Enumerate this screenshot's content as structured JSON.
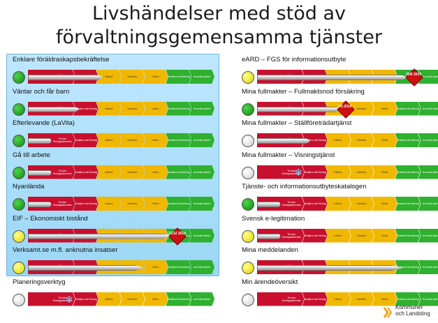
{
  "title": {
    "line1": "Livshändelser med stöd av",
    "line2": "förvaltningsgemensamma tjänster"
  },
  "stage_labels": [
    "",
    "Ta fram förslagsalternativ",
    "Detaljera valt förslag",
    "Initiera",
    "Utveckla",
    "Införa",
    "Realisera förvaltning",
    "Avveckla tjänst"
  ],
  "left_rows": [
    {
      "label": "Enklare föräldraskapsbekräftelse",
      "status": "green",
      "progress": 0.4,
      "marker": null
    },
    {
      "label": "Väntar och får barn",
      "status": "green",
      "progress": 0.27,
      "marker": null
    },
    {
      "label": "Efterlevande (LaVita)",
      "status": "green",
      "progress": 0.12,
      "marker": null
    },
    {
      "label": "Gå till arbete",
      "status": "green",
      "progress": 0.12,
      "marker": null
    },
    {
      "label": "Nyanlända",
      "status": "green",
      "progress": 0.12,
      "marker": null
    },
    {
      "label": "EIF – Ekonomiskt bistånd",
      "status": "yellow",
      "progress": 0.78,
      "marker": {
        "type": "diamond",
        "text": "31/12 2014"
      }
    },
    {
      "label": "Verksamt.se m.fl. anknutna insatser",
      "status": "yellow",
      "progress": 0.62,
      "marker": null
    },
    {
      "label": "Planeringsverktyg",
      "status": "white",
      "progress": 0.0,
      "marker": {
        "type": "snow",
        "text": ""
      }
    }
  ],
  "right_rows": [
    {
      "label": "eARD – FGS för informationsutbyte",
      "status": "yellow",
      "progress": 0.82,
      "marker": {
        "type": "diamond",
        "text": "30/6 2014"
      }
    },
    {
      "label": "Mina fullmakter – Fullmaktsnod försäkring",
      "status": "green",
      "progress": 0.45,
      "marker": {
        "type": "diamond",
        "text": "1/5 2015"
      }
    },
    {
      "label": "Mina fullmakter – Ställföreträdartjänst",
      "status": "white",
      "progress": 0.28,
      "marker": null
    },
    {
      "label": "Mina fullmakter – Visningstjänst",
      "status": "white",
      "progress": 0.0,
      "marker": {
        "type": "snow",
        "text": ""
      }
    },
    {
      "label": "Tjänste- och informationsutbyteskatalogen",
      "status": "green",
      "progress": 0.12,
      "marker": null
    },
    {
      "label": "Svensk e-legitimation",
      "status": "yellow",
      "progress": 0.12,
      "marker": null
    },
    {
      "label": "Mina meddelanden",
      "status": "yellow",
      "progress": 0.78,
      "marker": null
    },
    {
      "label": "Min ärendeöversikt",
      "status": "white",
      "progress": 0.0,
      "marker": null
    }
  ],
  "logo": {
    "line1": "Kommuner",
    "line2": "och Landsting"
  },
  "colors": {
    "green": "#2fb02f",
    "yellow": "#f0b800",
    "red": "#c8102e",
    "panel": "#a9ddf8"
  }
}
